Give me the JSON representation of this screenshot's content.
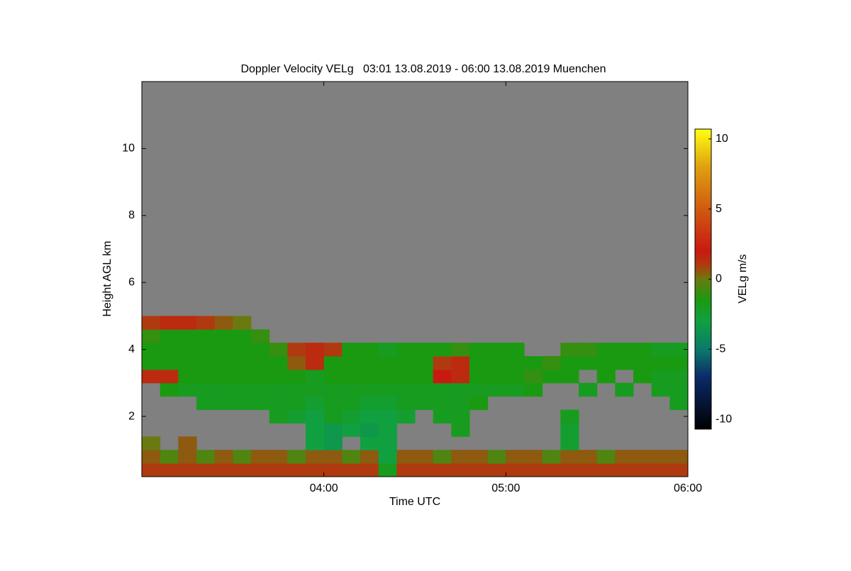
{
  "chart_data": {
    "type": "heatmap",
    "title": "Doppler Velocity VELg   03:01 13.08.2019 - 06:00 13.08.2019 Muenchen",
    "xlabel": "Time UTC",
    "ylabel": "Height AGL km",
    "colorbar_label": "VELg m/s",
    "xlim": [
      3.0,
      6.0
    ],
    "xticks": [
      {
        "value": 4,
        "label": "04:00"
      },
      {
        "value": 5,
        "label": "05:00"
      },
      {
        "value": 6,
        "label": "06:00"
      }
    ],
    "ylim": [
      0.2,
      12
    ],
    "yticks": [
      2,
      4,
      6,
      8,
      10
    ],
    "clim": [
      -10.7,
      10.7
    ],
    "cticks": [
      -10,
      -5,
      0,
      5,
      10
    ],
    "background": "#808080",
    "colorscale": [
      [
        -10.7,
        "#000000"
      ],
      [
        -7,
        "#0a2a6a"
      ],
      [
        -5,
        "#0a7a6a"
      ],
      [
        -3,
        "#11a040"
      ],
      [
        -1.5,
        "#1a9a10"
      ],
      [
        0,
        "#6a7a10"
      ],
      [
        1,
        "#b03a10"
      ],
      [
        2,
        "#c81a10"
      ],
      [
        5,
        "#d05a10"
      ],
      [
        8,
        "#e0a010"
      ],
      [
        10.7,
        "#ffff10"
      ]
    ],
    "x": [
      3.05,
      3.15,
      3.25,
      3.35,
      3.45,
      3.55,
      3.65,
      3.75,
      3.85,
      3.95,
      4.05,
      4.15,
      4.25,
      4.35,
      4.45,
      4.55,
      4.65,
      4.75,
      4.85,
      4.95,
      5.05,
      5.15,
      5.25,
      5.35,
      5.45,
      5.55,
      5.65,
      5.75,
      5.85,
      5.95
    ],
    "y": [
      0.4,
      0.8,
      1.2,
      1.6,
      2.0,
      2.4,
      2.8,
      3.2,
      3.6,
      4.0,
      4.4,
      4.8
    ],
    "z": [
      [
        1,
        1,
        1,
        1,
        1,
        1,
        1,
        1,
        1,
        1,
        1,
        1,
        1,
        -2,
        1,
        1,
        1,
        1,
        1,
        1,
        1,
        1,
        1,
        1,
        1,
        1,
        1,
        1,
        1,
        1
      ],
      [
        0.5,
        -0.5,
        0.5,
        -0.5,
        0.5,
        -0.5,
        0.5,
        0.5,
        -0.5,
        0.5,
        0.5,
        -0.5,
        0.5,
        -3,
        0.5,
        0.5,
        -0.5,
        0.5,
        0.5,
        -0.5,
        0.5,
        0.5,
        -0.5,
        0.5,
        0.5,
        -0.5,
        0.5,
        0.5,
        0.5,
        0.5
      ],
      [
        0,
        null,
        0.5,
        null,
        null,
        null,
        null,
        null,
        null,
        -3,
        -3.5,
        null,
        -3,
        -3,
        null,
        null,
        null,
        null,
        null,
        null,
        null,
        null,
        null,
        -2.5,
        null,
        null,
        null,
        null,
        null,
        null
      ],
      [
        null,
        null,
        null,
        null,
        null,
        null,
        null,
        null,
        null,
        -3,
        -3.5,
        -3,
        -3.5,
        -3,
        null,
        null,
        null,
        -2,
        null,
        null,
        null,
        null,
        null,
        -2.5,
        null,
        null,
        null,
        null,
        null,
        null
      ],
      [
        null,
        null,
        null,
        null,
        null,
        null,
        null,
        -2,
        -2.5,
        -3,
        -2,
        -2.5,
        -3,
        -3,
        -2.5,
        null,
        -2,
        -2,
        null,
        null,
        null,
        null,
        null,
        -2,
        null,
        null,
        null,
        null,
        null,
        null
      ],
      [
        null,
        null,
        null,
        -2,
        -2,
        -2,
        -2,
        -2,
        -2,
        -2.5,
        -2,
        -2,
        -2.5,
        -2.5,
        -2,
        -2,
        -2,
        -2,
        -1.5,
        null,
        null,
        null,
        null,
        null,
        null,
        null,
        null,
        null,
        null,
        -2
      ],
      [
        null,
        -1.5,
        -2,
        -2,
        -2,
        -2,
        -2,
        -2,
        -2,
        -2,
        -2,
        -2,
        -2,
        -2,
        -2,
        -2,
        -2,
        -2,
        -2,
        -2,
        -2,
        -1.5,
        null,
        null,
        -2,
        null,
        -2,
        null,
        -2,
        -2
      ],
      [
        1.5,
        1.5,
        -1.5,
        -1.5,
        -1.5,
        -1.5,
        -1.5,
        -1.5,
        -1.5,
        -2,
        -1.5,
        -1.5,
        -1.5,
        -1.5,
        -1.5,
        -1.5,
        2,
        1.5,
        -1.5,
        -1.5,
        -1.5,
        -1,
        -1.5,
        -1.5,
        null,
        -1.5,
        null,
        -1.5,
        -2,
        -2
      ],
      [
        -1.5,
        -1.5,
        -1.5,
        -1.5,
        -1.5,
        -1.5,
        -1.5,
        -1.5,
        0.5,
        1.5,
        -1.5,
        -1.5,
        -1.5,
        -1.5,
        -1.5,
        -1.5,
        1,
        1.5,
        -1.5,
        -1.5,
        -1.5,
        -1.5,
        -1,
        -1.5,
        -1.5,
        -1.5,
        -1.5,
        -1.5,
        -1.5,
        -1.5
      ],
      [
        -1.5,
        -1.5,
        -1.5,
        -1.5,
        -1.5,
        -1.5,
        -1.5,
        -1,
        1,
        1.5,
        1,
        -1.5,
        -1.5,
        -2,
        -1.5,
        -1.5,
        -1.5,
        -1,
        -1.5,
        -1.5,
        -1.5,
        null,
        null,
        -1,
        -1,
        -1.5,
        -1.5,
        -1.5,
        -2,
        -2
      ],
      [
        -1,
        -1.5,
        -1.5,
        -1.5,
        -1.5,
        -1.5,
        -1,
        null,
        null,
        null,
        null,
        null,
        null,
        null,
        null,
        null,
        null,
        null,
        null,
        null,
        null,
        null,
        null,
        null,
        null,
        null,
        null,
        null,
        null,
        null
      ],
      [
        1,
        1.5,
        1.5,
        1,
        0.5,
        0,
        null,
        null,
        null,
        null,
        null,
        null,
        null,
        null,
        null,
        null,
        null,
        null,
        null,
        null,
        null,
        null,
        null,
        null,
        null,
        null,
        null,
        null,
        null,
        null
      ]
    ]
  }
}
